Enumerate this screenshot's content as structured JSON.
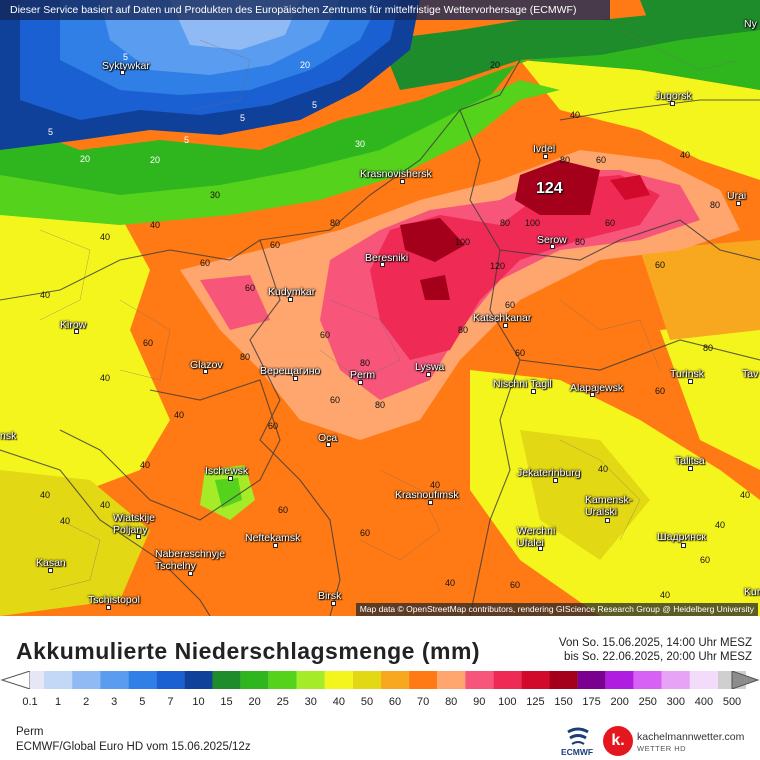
{
  "banner": {
    "text": "Dieser Service basiert auf Daten und Produkten des Europäischen Zentrums für mittelfristige Wettervorhersage (ECMWF)"
  },
  "map": {
    "attribution": "Map data © OpenStreetMap contributors, rendering GIScience Research Group @ Heidelberg University",
    "max_value": "124",
    "cities": [
      {
        "name": "Syktywkar"
      },
      {
        "name": "Jugorsk"
      },
      {
        "name": "Ivdel"
      },
      {
        "name": "Krasnovishersk"
      },
      {
        "name": "Urai"
      },
      {
        "name": "Serow"
      },
      {
        "name": "Beresniki"
      },
      {
        "name": "Kudymkar"
      },
      {
        "name": "Katschkanar"
      },
      {
        "name": "Kirow"
      },
      {
        "name": "Glazov"
      },
      {
        "name": "Верещагино"
      },
      {
        "name": "Perm"
      },
      {
        "name": "Lyswa"
      },
      {
        "name": "Nischni Tagil"
      },
      {
        "name": "Alapajewsk"
      },
      {
        "name": "Turinsk"
      },
      {
        "name": "Oca"
      },
      {
        "name": "Talitsa"
      },
      {
        "name": "Ischewsk"
      },
      {
        "name": "Krasnoufimsk"
      },
      {
        "name": "Jekaterinburg"
      },
      {
        "name": "Kamensk-\nUralski"
      },
      {
        "name": "Wiatskije\nPoljany"
      },
      {
        "name": "Neftekamsk"
      },
      {
        "name": "Werchni\nUfalei"
      },
      {
        "name": "Шадринск"
      },
      {
        "name": "Naberesсhnyje\nTschelny"
      },
      {
        "name": "Kasan"
      },
      {
        "name": "Tschistopol"
      },
      {
        "name": "Birsk"
      },
      {
        "name": "Ny"
      },
      {
        "name": "Tav"
      },
      {
        "name": "Kur"
      },
      {
        "name": "nsk"
      }
    ],
    "value_labels": [
      "5",
      "5",
      "5",
      "5",
      "5",
      "20",
      "20",
      "20",
      "20",
      "40",
      "40",
      "30",
      "30",
      "40",
      "60",
      "60",
      "80",
      "80",
      "80",
      "60",
      "40",
      "40",
      "60",
      "60",
      "80",
      "100",
      "120",
      "100",
      "80",
      "80",
      "60",
      "60",
      "80",
      "80",
      "60",
      "40",
      "40",
      "60",
      "60",
      "80",
      "60",
      "40",
      "40",
      "60",
      "40",
      "40",
      "40",
      "60",
      "40",
      "60",
      "80",
      "60",
      "40",
      "40",
      "60",
      "40",
      "60",
      "40"
    ]
  },
  "legend": {
    "title": "Akkumulierte Niederschlagsmenge (mm)",
    "period_from": "Von So. 15.06.2025, 14:00 Uhr MESZ",
    "period_to": "bis So. 22.06.2025, 20:00 Uhr MESZ",
    "scale": [
      {
        "label": "0.1",
        "color": "#e6e6f5"
      },
      {
        "label": "1",
        "color": "#c3d7f7"
      },
      {
        "label": "2",
        "color": "#8fbaf3"
      },
      {
        "label": "3",
        "color": "#5a9cf0"
      },
      {
        "label": "5",
        "color": "#2f7fe6"
      },
      {
        "label": "7",
        "color": "#1b60d2"
      },
      {
        "label": "10",
        "color": "#10419a"
      },
      {
        "label": "15",
        "color": "#1e8c2a"
      },
      {
        "label": "20",
        "color": "#2fb61f"
      },
      {
        "label": "25",
        "color": "#55d21c"
      },
      {
        "label": "30",
        "color": "#a5eb28"
      },
      {
        "label": "40",
        "color": "#f5f51e"
      },
      {
        "label": "50",
        "color": "#e2d813"
      },
      {
        "label": "60",
        "color": "#f7a81e"
      },
      {
        "label": "70",
        "color": "#ff7a14"
      },
      {
        "label": "80",
        "color": "#ffa56e"
      },
      {
        "label": "90",
        "color": "#f7557a"
      },
      {
        "label": "100",
        "color": "#ef2a55"
      },
      {
        "label": "125",
        "color": "#d10a2b"
      },
      {
        "label": "150",
        "color": "#a4001b"
      },
      {
        "label": "175",
        "color": "#7a0090"
      },
      {
        "label": "200",
        "color": "#b01ce0"
      },
      {
        "label": "250",
        "color": "#d760f5"
      },
      {
        "label": "300",
        "color": "#e7a4f7"
      },
      {
        "label": "400",
        "color": "#f3dcf9"
      },
      {
        "label": "500",
        "color": "#cfcfcf"
      }
    ],
    "location": "Perm",
    "model_run": "ECMWF/Global Euro HD vom  15.06.2025/12z"
  },
  "branding": {
    "ecmwf": "ECMWF",
    "km_glyph": "k.",
    "km_name": "kachelmannwetter.com",
    "km_sub": "WETTER HD"
  }
}
